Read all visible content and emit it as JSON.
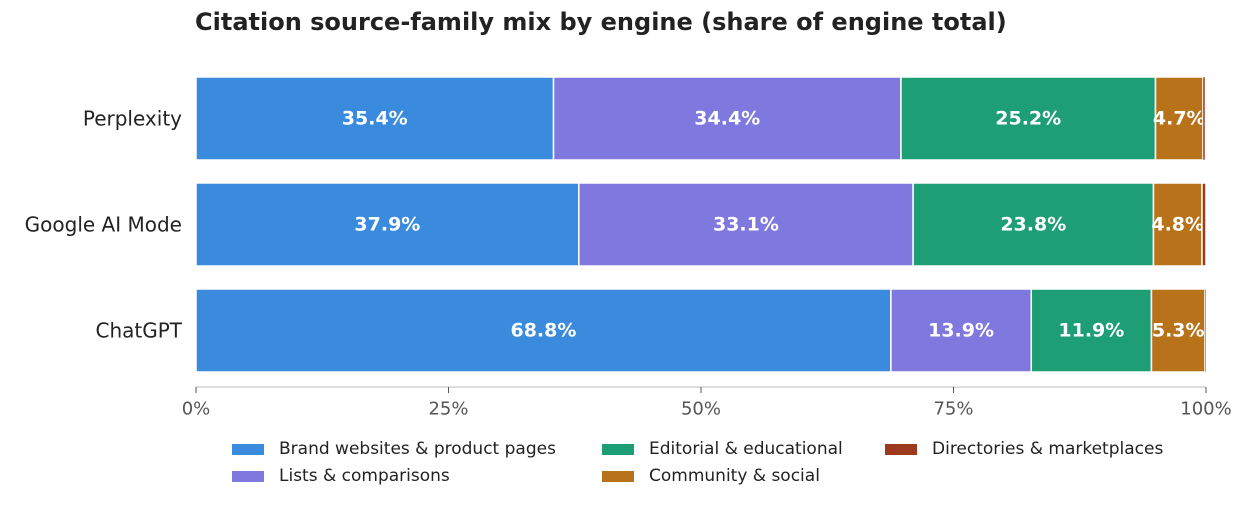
{
  "chart_data": {
    "type": "bar",
    "orientation": "horizontal",
    "stacked": true,
    "title": "Citation source-family mix by engine (share of engine total)",
    "xlabel": "",
    "ylabel": "",
    "xlim": [
      0,
      100
    ],
    "x_ticks": [
      "0%",
      "25%",
      "50%",
      "75%",
      "100%"
    ],
    "x_tick_values": [
      0,
      25,
      50,
      75,
      100
    ],
    "grid": false,
    "legend_position": "bottom",
    "categories": [
      "Perplexity",
      "Google AI Mode",
      "ChatGPT"
    ],
    "series": [
      {
        "name": "Brand websites & product pages",
        "color": "#3a8ade",
        "values": [
          35.4,
          37.9,
          68.8
        ],
        "labels": [
          "35.4%",
          "37.9%",
          "68.8%"
        ]
      },
      {
        "name": "Lists & comparisons",
        "color": "#7f78de",
        "values": [
          34.4,
          33.1,
          13.9
        ],
        "labels": [
          "34.4%",
          "33.1%",
          "13.9%"
        ]
      },
      {
        "name": "Editorial & educational",
        "color": "#1d9e74",
        "values": [
          25.2,
          23.8,
          11.9
        ],
        "labels": [
          "25.2%",
          "23.8%",
          "11.9%"
        ]
      },
      {
        "name": "Community & social",
        "color": "#b8731a",
        "values": [
          4.7,
          4.8,
          5.3
        ],
        "labels": [
          "4.7%",
          "4.8%",
          "5.3%"
        ]
      },
      {
        "name": "Directories & marketplaces",
        "color": "#9c3a1e",
        "values": [
          0.2,
          0.4,
          0.1
        ],
        "labels": [
          "",
          "",
          ""
        ]
      }
    ]
  }
}
